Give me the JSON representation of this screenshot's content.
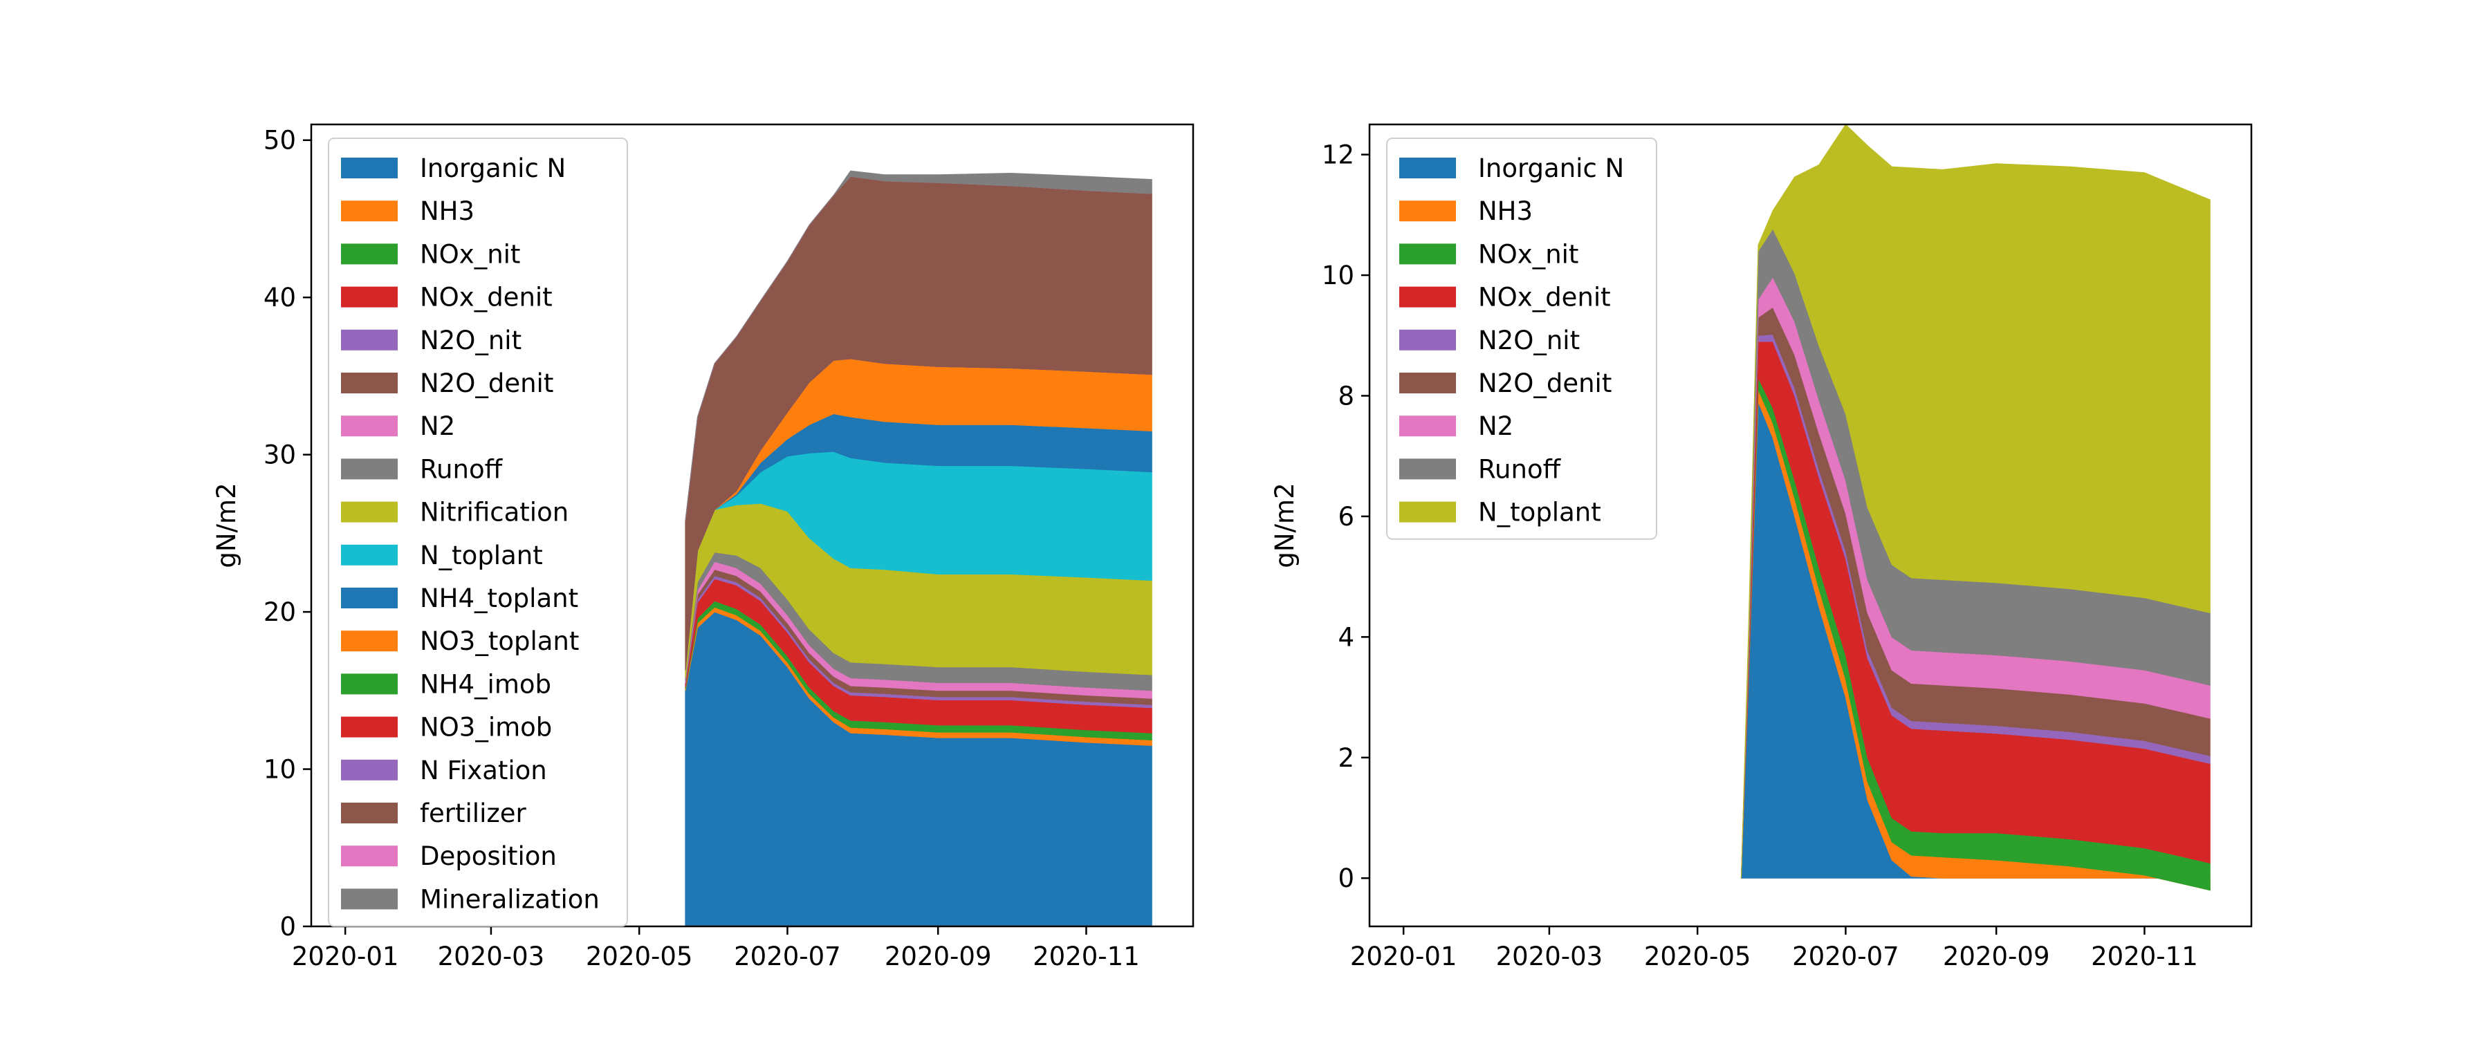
{
  "chart_data": [
    {
      "type": "area",
      "stacked": true,
      "x": [
        "2020-05-20",
        "2020-05-25",
        "2020-06-01",
        "2020-06-10",
        "2020-06-20",
        "2020-07-01",
        "2020-07-10",
        "2020-07-20",
        "2020-07-27",
        "2020-08-10",
        "2020-09-01",
        "2020-10-01",
        "2020-11-01",
        "2020-11-28"
      ],
      "series": [
        {
          "name": "Inorganic N",
          "color": "#1f77b4",
          "values": [
            15.0,
            19.0,
            20.0,
            19.5,
            18.5,
            16.5,
            14.5,
            13.0,
            12.3,
            12.2,
            12.0,
            12.0,
            11.7,
            11.5
          ]
        },
        {
          "name": "NH3",
          "color": "#ff7f0e",
          "values": [
            0.1,
            0.3,
            0.3,
            0.3,
            0.3,
            0.3,
            0.3,
            0.3,
            0.35,
            0.35,
            0.35,
            0.35,
            0.35,
            0.35
          ]
        },
        {
          "name": "NOx_nit",
          "color": "#2ca02c",
          "values": [
            0.1,
            0.3,
            0.4,
            0.4,
            0.4,
            0.4,
            0.4,
            0.4,
            0.45,
            0.45,
            0.45,
            0.45,
            0.45,
            0.45
          ]
        },
        {
          "name": "NOx_denit",
          "color": "#d62728",
          "values": [
            0.2,
            1.0,
            1.4,
            1.5,
            1.5,
            1.5,
            1.6,
            1.6,
            1.6,
            1.6,
            1.6,
            1.6,
            1.6,
            1.6
          ]
        },
        {
          "name": "N2O_nit",
          "color": "#9467bd",
          "values": [
            0.05,
            0.2,
            0.2,
            0.2,
            0.2,
            0.2,
            0.2,
            0.2,
            0.2,
            0.2,
            0.2,
            0.2,
            0.2,
            0.2
          ]
        },
        {
          "name": "N2O_denit",
          "color": "#8c564b",
          "values": [
            0.05,
            0.3,
            0.4,
            0.4,
            0.4,
            0.4,
            0.4,
            0.4,
            0.4,
            0.4,
            0.4,
            0.4,
            0.4,
            0.4
          ]
        },
        {
          "name": "N2",
          "color": "#e377c2",
          "values": [
            0.1,
            0.3,
            0.5,
            0.5,
            0.5,
            0.5,
            0.5,
            0.5,
            0.5,
            0.5,
            0.5,
            0.5,
            0.5,
            0.5
          ]
        },
        {
          "name": "Runoff",
          "color": "#7f7f7f",
          "values": [
            0.2,
            0.5,
            0.6,
            0.8,
            1.0,
            1.0,
            1.0,
            1.0,
            1.0,
            1.0,
            1.0,
            1.0,
            1.0,
            1.0
          ]
        },
        {
          "name": "Nitrification",
          "color": "#bcbd22",
          "values": [
            0.5,
            2.0,
            2.7,
            3.2,
            4.1,
            5.6,
            5.8,
            6.0,
            6.0,
            6.0,
            5.9,
            5.9,
            6.0,
            6.0
          ]
        },
        {
          "name": "N_toplant",
          "color": "#17becf",
          "values": [
            0.0,
            0.0,
            0.0,
            0.6,
            2.0,
            3.5,
            5.4,
            6.8,
            7.0,
            6.8,
            6.9,
            6.9,
            6.9,
            6.9
          ]
        },
        {
          "name": "NH4_toplant",
          "color": "#1f77b4",
          "values": [
            0.0,
            0.0,
            0.0,
            0.1,
            0.6,
            1.1,
            1.8,
            2.4,
            2.6,
            2.6,
            2.6,
            2.6,
            2.6,
            2.6
          ]
        },
        {
          "name": "NO3_toplant",
          "color": "#ff7f0e",
          "values": [
            0.0,
            0.0,
            0.0,
            0.2,
            0.8,
            1.7,
            2.7,
            3.4,
            3.7,
            3.7,
            3.7,
            3.6,
            3.6,
            3.6
          ]
        },
        {
          "name": "NH4_imob",
          "color": "#2ca02c",
          "values": [
            0.0,
            0.0,
            0.0,
            0.0,
            0.0,
            0.0,
            0.0,
            0.0,
            0.0,
            0.0,
            0.0,
            0.0,
            0.0,
            0.0
          ]
        },
        {
          "name": "NO3_imob",
          "color": "#d62728",
          "values": [
            0.0,
            0.0,
            0.0,
            0.0,
            0.0,
            0.0,
            0.0,
            0.0,
            0.0,
            0.0,
            0.0,
            0.0,
            0.0,
            0.0
          ]
        },
        {
          "name": "N Fixation",
          "color": "#9467bd",
          "values": [
            0.0,
            0.0,
            0.0,
            0.0,
            0.0,
            0.0,
            0.0,
            0.0,
            0.0,
            0.0,
            0.0,
            0.0,
            0.0,
            0.0
          ]
        },
        {
          "name": "fertilizer",
          "color": "#8c564b",
          "values": [
            9.5,
            8.5,
            9.3,
            9.8,
            9.5,
            9.6,
            10.0,
            10.5,
            11.6,
            11.6,
            11.7,
            11.6,
            11.5,
            11.5
          ]
        },
        {
          "name": "Deposition",
          "color": "#e377c2",
          "values": [
            0.0,
            0.0,
            0.0,
            0.0,
            0.0,
            0.0,
            0.0,
            0.0,
            0.0,
            0.0,
            0.0,
            0.0,
            0.0,
            0.0
          ]
        },
        {
          "name": "Mineralization",
          "color": "#7f7f7f",
          "values": [
            0.0,
            0.0,
            0.0,
            0.0,
            0.0,
            0.0,
            0.0,
            0.0,
            0.35,
            0.4,
            0.5,
            0.8,
            0.9,
            0.9
          ]
        }
      ],
      "xlabel": "",
      "ylabel": "gN/m2",
      "xlim": [
        "2019-12-18",
        "2020-12-15"
      ],
      "ylim": [
        0,
        51
      ],
      "xticks": [
        "2020-01",
        "2020-03",
        "2020-05",
        "2020-07",
        "2020-09",
        "2020-11"
      ],
      "yticks": [
        0,
        10,
        20,
        30,
        40,
        50
      ],
      "legend": "upper left",
      "grid": false
    },
    {
      "type": "area",
      "stacked": true,
      "x": [
        "2020-05-19",
        "2020-05-22",
        "2020-05-26",
        "2020-06-01",
        "2020-06-10",
        "2020-06-20",
        "2020-07-01",
        "2020-07-10",
        "2020-07-20",
        "2020-07-28",
        "2020-08-10",
        "2020-09-01",
        "2020-10-01",
        "2020-11-01",
        "2020-11-28"
      ],
      "series": [
        {
          "name": "Inorganic N",
          "color": "#1f77b4",
          "values": [
            0.0,
            3.2,
            7.9,
            7.3,
            6.0,
            4.5,
            3.0,
            1.3,
            0.3,
            0.03,
            0.0,
            0.0,
            0.0,
            0.0,
            0.0
          ]
        },
        {
          "name": "NH3",
          "color": "#ff7f0e",
          "values": [
            0.0,
            0.1,
            0.2,
            0.25,
            0.3,
            0.3,
            0.3,
            0.3,
            0.3,
            0.35,
            0.35,
            0.3,
            0.2,
            0.05,
            -0.2
          ]
        },
        {
          "name": "NOx_nit",
          "color": "#2ca02c",
          "values": [
            0.0,
            0.0,
            0.2,
            0.25,
            0.3,
            0.35,
            0.4,
            0.4,
            0.4,
            0.4,
            0.4,
            0.45,
            0.45,
            0.45,
            0.45
          ]
        },
        {
          "name": "NOx_denit",
          "color": "#d62728",
          "values": [
            0.0,
            0.2,
            0.6,
            1.1,
            1.4,
            1.5,
            1.6,
            1.65,
            1.7,
            1.7,
            1.7,
            1.65,
            1.65,
            1.65,
            1.65
          ]
        },
        {
          "name": "N2O_nit",
          "color": "#9467bd",
          "values": [
            0.0,
            0.0,
            0.1,
            0.12,
            0.13,
            0.13,
            0.13,
            0.13,
            0.13,
            0.13,
            0.13,
            0.13,
            0.13,
            0.13,
            0.13
          ]
        },
        {
          "name": "N2O_denit",
          "color": "#8c564b",
          "values": [
            0.0,
            0.1,
            0.3,
            0.45,
            0.55,
            0.6,
            0.62,
            0.62,
            0.62,
            0.62,
            0.62,
            0.62,
            0.62,
            0.62,
            0.62
          ]
        },
        {
          "name": "N2",
          "color": "#e377c2",
          "values": [
            0.0,
            0.1,
            0.3,
            0.5,
            0.55,
            0.55,
            0.55,
            0.55,
            0.55,
            0.55,
            0.55,
            0.55,
            0.55,
            0.55,
            0.55
          ]
        },
        {
          "name": "Runoff",
          "color": "#7f7f7f",
          "values": [
            0.0,
            0.2,
            0.8,
            0.8,
            0.8,
            0.9,
            1.1,
            1.2,
            1.2,
            1.2,
            1.2,
            1.2,
            1.2,
            1.2,
            1.2
          ]
        },
        {
          "name": "N_toplant",
          "color": "#bcbd22",
          "values": [
            0.0,
            0.2,
            0.1,
            0.3,
            1.6,
            3.0,
            4.8,
            6.0,
            6.6,
            6.8,
            6.8,
            6.95,
            7.0,
            7.05,
            6.85
          ]
        }
      ],
      "xlabel": "",
      "ylabel": "gN/m2",
      "xlim": [
        "2019-12-18",
        "2020-12-15"
      ],
      "ylim": [
        -0.8,
        12.5
      ],
      "xticks": [
        "2020-01",
        "2020-03",
        "2020-05",
        "2020-07",
        "2020-09",
        "2020-11"
      ],
      "yticks": [
        0,
        2,
        4,
        6,
        8,
        10,
        12
      ],
      "legend": "upper left",
      "grid": false
    }
  ]
}
